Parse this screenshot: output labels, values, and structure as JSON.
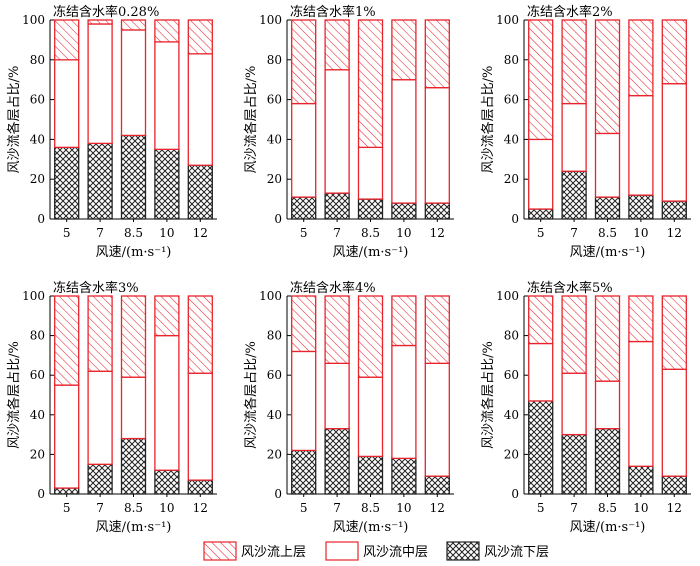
{
  "legend": {
    "items": [
      {
        "label": "风沙流上层",
        "key": "upper"
      },
      {
        "label": "风沙流中层",
        "key": "middle"
      },
      {
        "label": "风沙流下层",
        "key": "lower"
      }
    ]
  },
  "colors": {
    "edge": "#e8232b",
    "dark": "#222222",
    "axis": "#000000"
  },
  "chart_data": [
    {
      "type": "bar",
      "stacked": true,
      "title": "冻结含水率0.28%",
      "xlabel": "风速/(m·s⁻¹)",
      "ylabel": "风沙流各层占比/%",
      "categories": [
        "5",
        "7",
        "8.5",
        "10",
        "12"
      ],
      "yticks": [
        "0",
        "20",
        "40",
        "60",
        "80",
        "100"
      ],
      "ylim": [
        0,
        100
      ],
      "series": [
        {
          "name": "风沙流下层",
          "values": [
            36,
            38,
            42,
            35,
            27
          ]
        },
        {
          "name": "风沙流中层",
          "values": [
            44,
            60,
            53,
            54,
            56
          ]
        },
        {
          "name": "风沙流上层",
          "values": [
            20,
            2,
            5,
            11,
            17
          ]
        }
      ]
    },
    {
      "type": "bar",
      "stacked": true,
      "title": "冻结含水率1%",
      "xlabel": "风速/(m·s⁻¹)",
      "ylabel": "风沙流各层占比/%",
      "categories": [
        "5",
        "7",
        "8.5",
        "10",
        "12"
      ],
      "yticks": [
        "0",
        "20",
        "40",
        "60",
        "80",
        "100"
      ],
      "ylim": [
        0,
        100
      ],
      "series": [
        {
          "name": "风沙流下层",
          "values": [
            11,
            13,
            10,
            8,
            8
          ]
        },
        {
          "name": "风沙流中层",
          "values": [
            47,
            62,
            26,
            62,
            58
          ]
        },
        {
          "name": "风沙流上层",
          "values": [
            42,
            25,
            64,
            30,
            34
          ]
        }
      ]
    },
    {
      "type": "bar",
      "stacked": true,
      "title": "冻结含水率2%",
      "xlabel": "风速/(m·s⁻¹)",
      "ylabel": "风沙流各层占比/%",
      "categories": [
        "5",
        "7",
        "8.5",
        "10",
        "12"
      ],
      "yticks": [
        "0",
        "20",
        "40",
        "60",
        "80",
        "100"
      ],
      "ylim": [
        0,
        100
      ],
      "series": [
        {
          "name": "风沙流下层",
          "values": [
            5,
            24,
            11,
            12,
            9
          ]
        },
        {
          "name": "风沙流中层",
          "values": [
            35,
            34,
            32,
            50,
            59
          ]
        },
        {
          "name": "风沙流上层",
          "values": [
            60,
            42,
            57,
            38,
            32
          ]
        }
      ]
    },
    {
      "type": "bar",
      "stacked": true,
      "title": "冻结含水率3%",
      "xlabel": "风速/(m·s⁻¹)",
      "ylabel": "风沙流各层占比/%",
      "categories": [
        "5",
        "7",
        "8.5",
        "10",
        "12"
      ],
      "yticks": [
        "0",
        "20",
        "40",
        "60",
        "80",
        "100"
      ],
      "ylim": [
        0,
        100
      ],
      "series": [
        {
          "name": "风沙流下层",
          "values": [
            3,
            15,
            28,
            12,
            7
          ]
        },
        {
          "name": "风沙流中层",
          "values": [
            52,
            47,
            31,
            68,
            54
          ]
        },
        {
          "name": "风沙流上层",
          "values": [
            45,
            38,
            41,
            20,
            39
          ]
        }
      ]
    },
    {
      "type": "bar",
      "stacked": true,
      "title": "冻结含水率4%",
      "xlabel": "风速/(m·s⁻¹)",
      "ylabel": "风沙流各层占比/%",
      "categories": [
        "5",
        "7",
        "8.5",
        "10",
        "12"
      ],
      "yticks": [
        "0",
        "20",
        "40",
        "60",
        "80",
        "100"
      ],
      "ylim": [
        0,
        100
      ],
      "series": [
        {
          "name": "风沙流下层",
          "values": [
            22,
            33,
            19,
            18,
            9
          ]
        },
        {
          "name": "风沙流中层",
          "values": [
            50,
            33,
            40,
            57,
            57
          ]
        },
        {
          "name": "风沙流上层",
          "values": [
            28,
            34,
            41,
            25,
            34
          ]
        }
      ]
    },
    {
      "type": "bar",
      "stacked": true,
      "title": "冻结含水率5%",
      "xlabel": "风速/(m·s⁻¹)",
      "ylabel": "风沙流各层占比/%",
      "categories": [
        "5",
        "7",
        "8.5",
        "10",
        "12"
      ],
      "yticks": [
        "0",
        "20",
        "40",
        "60",
        "80",
        "100"
      ],
      "ylim": [
        0,
        100
      ],
      "series": [
        {
          "name": "风沙流下层",
          "values": [
            47,
            30,
            33,
            14,
            9
          ]
        },
        {
          "name": "风沙流中层",
          "values": [
            29,
            31,
            24,
            63,
            54
          ]
        },
        {
          "name": "风沙流上层",
          "values": [
            24,
            39,
            43,
            23,
            37
          ]
        }
      ]
    }
  ]
}
